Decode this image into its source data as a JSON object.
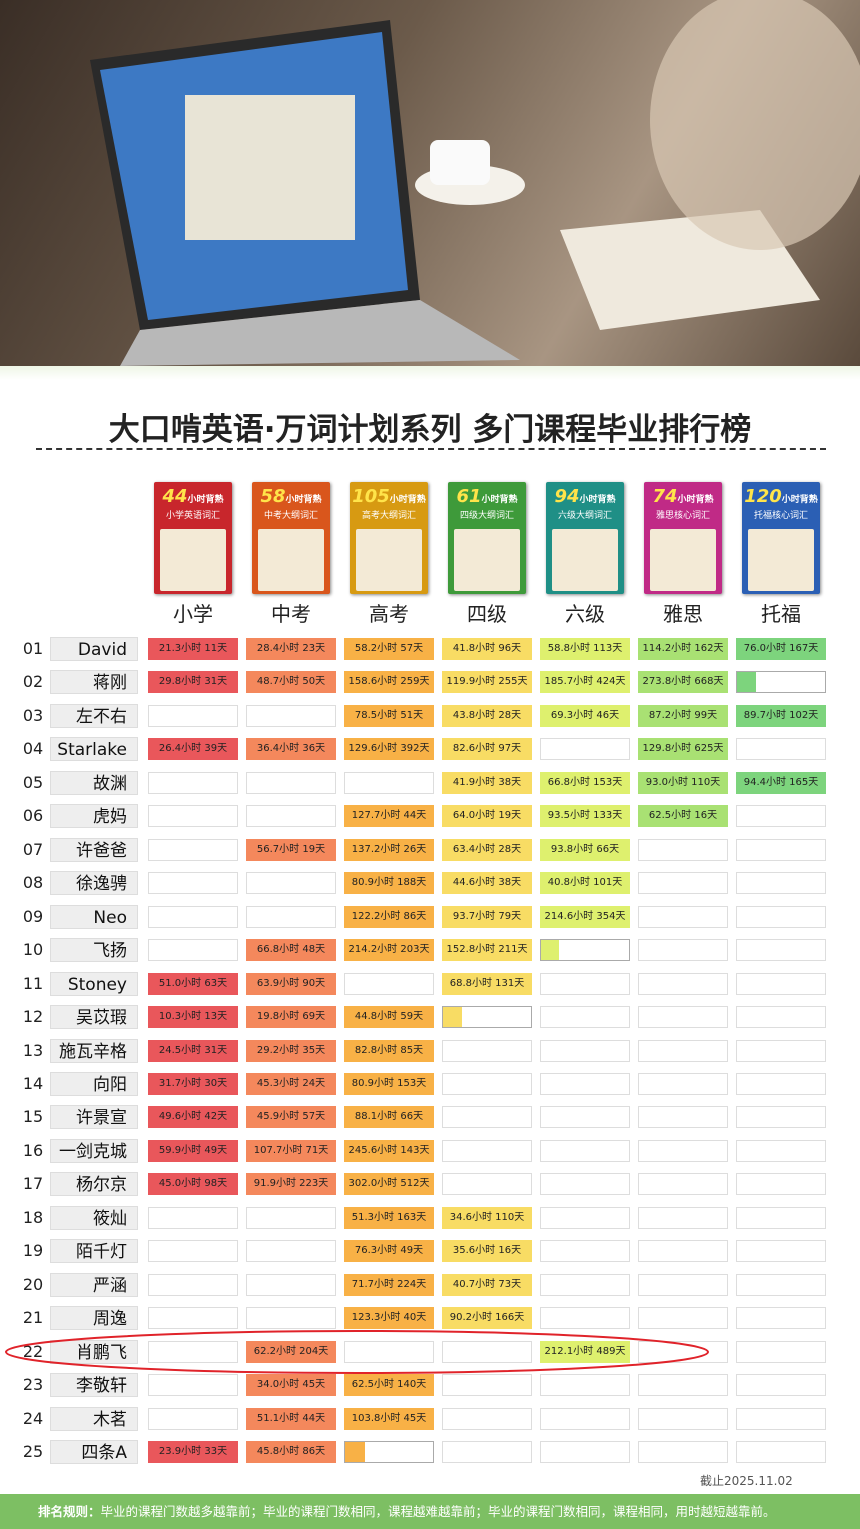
{
  "header": {
    "title": "大口啃英语·万词计划系列 多门课程毕业排行榜"
  },
  "columns": [
    {
      "label": "小学",
      "book_hours": "44",
      "book_lead": "小时背熟",
      "book_title": "小学英语词汇",
      "color": "#e9575b",
      "book_color": "#c8262c"
    },
    {
      "label": "中考",
      "book_hours": "58",
      "book_lead": "小时背熟",
      "book_title": "中考大纲词汇",
      "color": "#f4885c",
      "book_color": "#d9561c"
    },
    {
      "label": "高考",
      "book_hours": "105",
      "book_lead": "小时背熟",
      "book_title": "高考大纲词汇",
      "color": "#f8b146",
      "book_color": "#d79a12"
    },
    {
      "label": "四级",
      "book_hours": "61",
      "book_lead": "小时背熟",
      "book_title": "四级大纲词汇",
      "color": "#f8dc64",
      "book_color": "#3e9a3a"
    },
    {
      "label": "六级",
      "book_hours": "94",
      "book_lead": "小时背熟",
      "book_title": "六级大纲词汇",
      "color": "#def06e",
      "book_color": "#1f8f86"
    },
    {
      "label": "雅思",
      "book_hours": "74",
      "book_lead": "小时背熟",
      "book_title": "雅思核心词汇",
      "color": "#a9e173",
      "book_color": "#c02a86"
    },
    {
      "label": "托福",
      "book_hours": "120",
      "book_lead": "小时背熟",
      "book_title": "托福核心词汇",
      "color": "#7dd47d",
      "book_color": "#2b5fb4"
    }
  ],
  "table": {
    "rows": [
      {
        "rank": "01",
        "name": "David",
        "cells": [
          "21.3小时 11天",
          "28.4小时 23天",
          "58.2小时 57天",
          "41.8小时 96天",
          "58.8小时 113天",
          "114.2小时 162天",
          "76.0小时 167天"
        ]
      },
      {
        "rank": "02",
        "name": "蒋刚",
        "cells": [
          "29.8小时 31天",
          "48.7小时 50天",
          "158.6小时 259天",
          "119.9小时 255天",
          "185.7小时 424天",
          "273.8小时 668天",
          {
            "progress": 0.22
          }
        ]
      },
      {
        "rank": "03",
        "name": "左不右",
        "cells": [
          null,
          null,
          "78.5小时 51天",
          "43.8小时 28天",
          "69.3小时 46天",
          "87.2小时 99天",
          "89.7小时 102天"
        ]
      },
      {
        "rank": "04",
        "name": "Starlake",
        "cells": [
          "26.4小时 39天",
          "36.4小时 36天",
          "129.6小时 392天",
          "82.6小时 97天",
          null,
          "129.8小时 625天",
          null
        ]
      },
      {
        "rank": "05",
        "name": "故渊",
        "cells": [
          null,
          null,
          null,
          "41.9小时 38天",
          "66.8小时 153天",
          "93.0小时 110天",
          "94.4小时 165天"
        ]
      },
      {
        "rank": "06",
        "name": "虎妈",
        "cells": [
          null,
          null,
          "127.7小时 44天",
          "64.0小时 19天",
          "93.5小时 133天",
          "62.5小时 16天",
          null
        ]
      },
      {
        "rank": "07",
        "name": "许爸爸",
        "cells": [
          null,
          "56.7小时 19天",
          "137.2小时 26天",
          "63.4小时 28天",
          "93.8小时 66天",
          null,
          null
        ]
      },
      {
        "rank": "08",
        "name": "徐逸骋",
        "cells": [
          null,
          null,
          "80.9小时 188天",
          "44.6小时 38天",
          "40.8小时 101天",
          null,
          null
        ]
      },
      {
        "rank": "09",
        "name": "Neo",
        "cells": [
          null,
          null,
          "122.2小时 86天",
          "93.7小时 79天",
          "214.6小时 354天",
          null,
          null
        ]
      },
      {
        "rank": "10",
        "name": "飞扬",
        "cells": [
          null,
          "66.8小时 48天",
          "214.2小时 203天",
          "152.8小时 211天",
          {
            "progress": 0.2
          },
          null,
          null
        ]
      },
      {
        "rank": "11",
        "name": "Stoney",
        "cells": [
          "51.0小时 63天",
          "63.9小时 90天",
          null,
          "68.8小时 131天",
          null,
          null,
          null
        ]
      },
      {
        "rank": "12",
        "name": "吴苡瑕",
        "cells": [
          "10.3小时 13天",
          "19.8小时 69天",
          "44.8小时 59天",
          {
            "progress": 0.22
          },
          null,
          null,
          null
        ]
      },
      {
        "rank": "13",
        "name": "施瓦辛格",
        "cells": [
          "24.5小时 31天",
          "29.2小时 35天",
          "82.8小时 85天",
          null,
          null,
          null,
          null
        ]
      },
      {
        "rank": "14",
        "name": "向阳",
        "cells": [
          "31.7小时 30天",
          "45.3小时 24天",
          "80.9小时 153天",
          null,
          null,
          null,
          null
        ]
      },
      {
        "rank": "15",
        "name": "许景宣",
        "cells": [
          "49.6小时 42天",
          "45.9小时 57天",
          "88.1小时 66天",
          null,
          null,
          null,
          null
        ]
      },
      {
        "rank": "16",
        "name": "一剑克城",
        "cells": [
          "59.9小时 49天",
          "107.7小时 71天",
          "245.6小时 143天",
          null,
          null,
          null,
          null
        ]
      },
      {
        "rank": "17",
        "name": "杨尔京",
        "cells": [
          "45.0小时 98天",
          "91.9小时 223天",
          "302.0小时 512天",
          null,
          null,
          null,
          null
        ]
      },
      {
        "rank": "18",
        "name": "筱灿",
        "cells": [
          null,
          null,
          "51.3小时 163天",
          "34.6小时 110天",
          null,
          null,
          null
        ]
      },
      {
        "rank": "19",
        "name": "陌千灯",
        "cells": [
          null,
          null,
          "76.3小时 49天",
          "35.6小时 16天",
          null,
          null,
          null
        ]
      },
      {
        "rank": "20",
        "name": "严涵",
        "cells": [
          null,
          null,
          "71.7小时 224天",
          "40.7小时 73天",
          null,
          null,
          null
        ]
      },
      {
        "rank": "21",
        "name": "周逸",
        "cells": [
          null,
          null,
          "123.3小时 40天",
          "90.2小时 166天",
          null,
          null,
          null
        ]
      },
      {
        "rank": "22",
        "name": "肖鹏飞",
        "cells": [
          null,
          "62.2小时 204天",
          null,
          null,
          "212.1小时 489天",
          null,
          null
        ]
      },
      {
        "rank": "23",
        "name": "李敬轩",
        "cells": [
          null,
          "34.0小时 45天",
          "62.5小时 140天",
          null,
          null,
          null,
          null
        ]
      },
      {
        "rank": "24",
        "name": "木茗",
        "cells": [
          null,
          "51.1小时 44天",
          "103.8小时 45天",
          null,
          null,
          null,
          null
        ]
      },
      {
        "rank": "25",
        "name": "四条A",
        "cells": [
          "23.9小时 33天",
          "45.8小时 86天",
          {
            "progress": 0.23
          },
          null,
          null,
          null,
          null
        ]
      }
    ]
  },
  "footer": {
    "date": "截止2025.11.02",
    "rule_label": "排名规则：",
    "rule_text": "毕业的课程门数越多越靠前；毕业的课程门数相同，课程越难越靠前；毕业的课程门数相同，课程相同，用时越短越靠前。"
  }
}
